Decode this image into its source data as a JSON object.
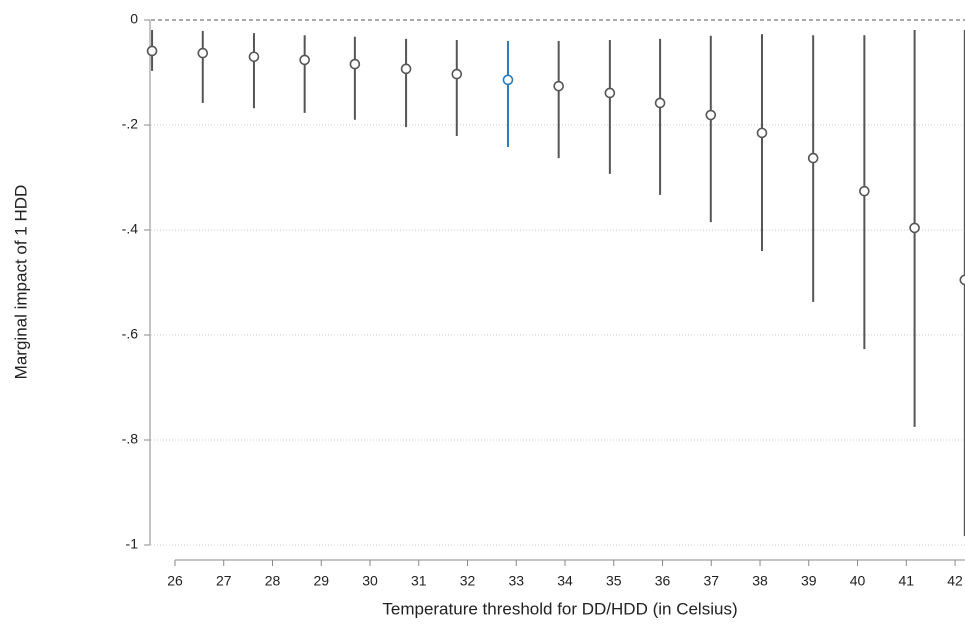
{
  "chart_data": {
    "type": "errorbar",
    "x_label": "Temperature threshold for DD/HDD (in Celsius)",
    "y_label": "Marginal impact of 1 HDD",
    "x": [
      25.53,
      26.57,
      27.62,
      28.66,
      29.69,
      30.74,
      31.78,
      32.83,
      33.87,
      34.92,
      35.95,
      36.99,
      38.04,
      39.09,
      40.14,
      41.17,
      42.2
    ],
    "series": [
      {
        "values": [
          -0.059,
          -0.063,
          -0.07,
          -0.076,
          -0.084,
          -0.093,
          -0.103,
          -0.114,
          -0.126,
          -0.139,
          -0.158,
          -0.181,
          -0.215,
          -0.263,
          -0.326,
          -0.396,
          -0.495
        ],
        "lower": [
          -0.097,
          -0.158,
          -0.168,
          -0.177,
          -0.19,
          -0.204,
          -0.221,
          -0.242,
          -0.263,
          -0.293,
          -0.333,
          -0.385,
          -0.44,
          -0.537,
          -0.627,
          -0.775,
          -0.983
        ],
        "upper": [
          -0.019,
          -0.021,
          -0.025,
          -0.029,
          -0.032,
          -0.036,
          -0.038,
          -0.04,
          -0.04,
          -0.038,
          -0.036,
          -0.03,
          -0.027,
          -0.029,
          -0.029,
          -0.019,
          -0.019
        ],
        "colors": [
          "#555555",
          "#555555",
          "#555555",
          "#555555",
          "#555555",
          "#555555",
          "#555555",
          "#2b7bb9",
          "#555555",
          "#555555",
          "#555555",
          "#555555",
          "#555555",
          "#555555",
          "#555555",
          "#555555",
          "#555555"
        ]
      }
    ],
    "xlim": [
      25.5,
      42.2
    ],
    "ylim": [
      -1,
      0
    ],
    "xticks": [
      26,
      27,
      28,
      29,
      30,
      31,
      32,
      33,
      34,
      35,
      36,
      37,
      38,
      39,
      40,
      41,
      42
    ],
    "yticks": [
      0,
      {
        "value": -0.2,
        "label": "-.2"
      },
      {
        "value": -0.4,
        "label": "-.4"
      },
      {
        "value": -0.6,
        "label": "-.6"
      },
      {
        "value": -0.8,
        "label": "-.8"
      },
      -1
    ],
    "grid": true
  }
}
